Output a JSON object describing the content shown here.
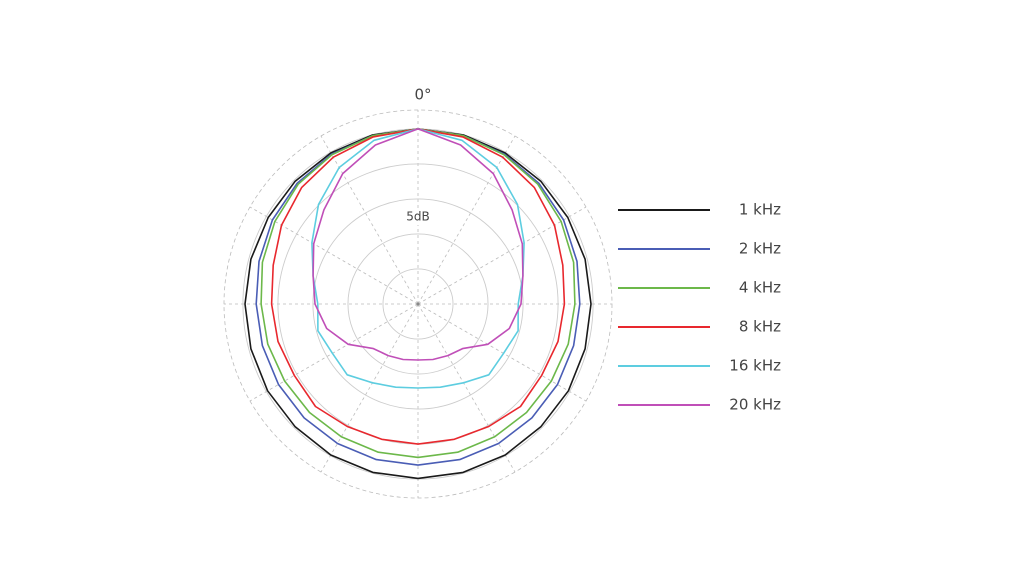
{
  "chart_data": {
    "type": "polar",
    "theta_label": "0°",
    "annotation": "5dB",
    "theta": [
      0,
      15,
      30,
      45,
      60,
      75,
      90,
      105,
      120,
      135,
      150,
      165,
      180,
      195,
      210,
      225,
      240,
      255,
      270,
      285,
      300,
      315,
      330,
      345
    ],
    "rlim": [
      -25,
      2.7
    ],
    "rticks": [
      -20,
      -15,
      -10,
      -5,
      0
    ],
    "series": [
      {
        "name": "1 kHz",
        "color": "#1a1a1a",
        "values": [
          0,
          0,
          -0.1,
          -0.2,
          -0.3,
          -0.3,
          -0.3,
          -0.3,
          -0.2,
          -0.2,
          -0.1,
          -0.1,
          -0.1,
          -0.1,
          -0.1,
          -0.2,
          -0.2,
          -0.3,
          -0.3,
          -0.3,
          -0.3,
          -0.2,
          -0.1,
          0
        ]
      },
      {
        "name": "2 kHz",
        "color": "#4a5db5",
        "values": [
          0,
          -0.1,
          -0.3,
          -0.6,
          -1,
          -1.5,
          -1.9,
          -2,
          -2,
          -2,
          -2,
          -2,
          -2,
          -2,
          -2,
          -2,
          -2,
          -2,
          -1.9,
          -1.5,
          -1,
          -0.6,
          -0.3,
          -0.1
        ]
      },
      {
        "name": "4 kHz",
        "color": "#6cb84a",
        "values": [
          0,
          -0.1,
          -0.4,
          -0.8,
          -1.4,
          -2,
          -2.6,
          -2.8,
          -3,
          -3.1,
          -3.1,
          -3.1,
          -3.1,
          -3.1,
          -3.1,
          -3.1,
          -3,
          -2.8,
          -2.6,
          -2,
          -1.4,
          -0.8,
          -0.4,
          -0.1
        ]
      },
      {
        "name": "8 kHz",
        "color": "#e8282e",
        "values": [
          0,
          -0.3,
          -0.8,
          -1.5,
          -2.5,
          -3.6,
          -4.1,
          -4.3,
          -4.6,
          -4.3,
          -4.8,
          -5,
          -5,
          -5,
          -4.8,
          -4.3,
          -4.6,
          -4.3,
          -4.1,
          -3.6,
          -2.5,
          -1.5,
          -0.8,
          -0.3
        ]
      },
      {
        "name": "16 kHz",
        "color": "#5dcde0",
        "values": [
          0,
          -0.8,
          -2.5,
          -4.9,
          -7.5,
          -9.5,
          -10.7,
          -10.2,
          -10.9,
          -10.7,
          -12,
          -12.7,
          -13,
          -12.7,
          -12,
          -10.7,
          -10.9,
          -10.2,
          -10.7,
          -9.5,
          -7.5,
          -4.9,
          -2.5,
          -0.8
        ]
      },
      {
        "name": "20 kHz",
        "color": "#c04fb8",
        "values": [
          0,
          -1.5,
          -3.5,
          -6,
          -7.8,
          -9.5,
          -10.3,
          -11.5,
          -13.5,
          -16,
          -16.5,
          -16.8,
          -17,
          -16.8,
          -16.5,
          -16,
          -13.5,
          -11.5,
          -10.3,
          -9.5,
          -7.8,
          -6,
          -3.5,
          -1.5
        ]
      }
    ]
  }
}
